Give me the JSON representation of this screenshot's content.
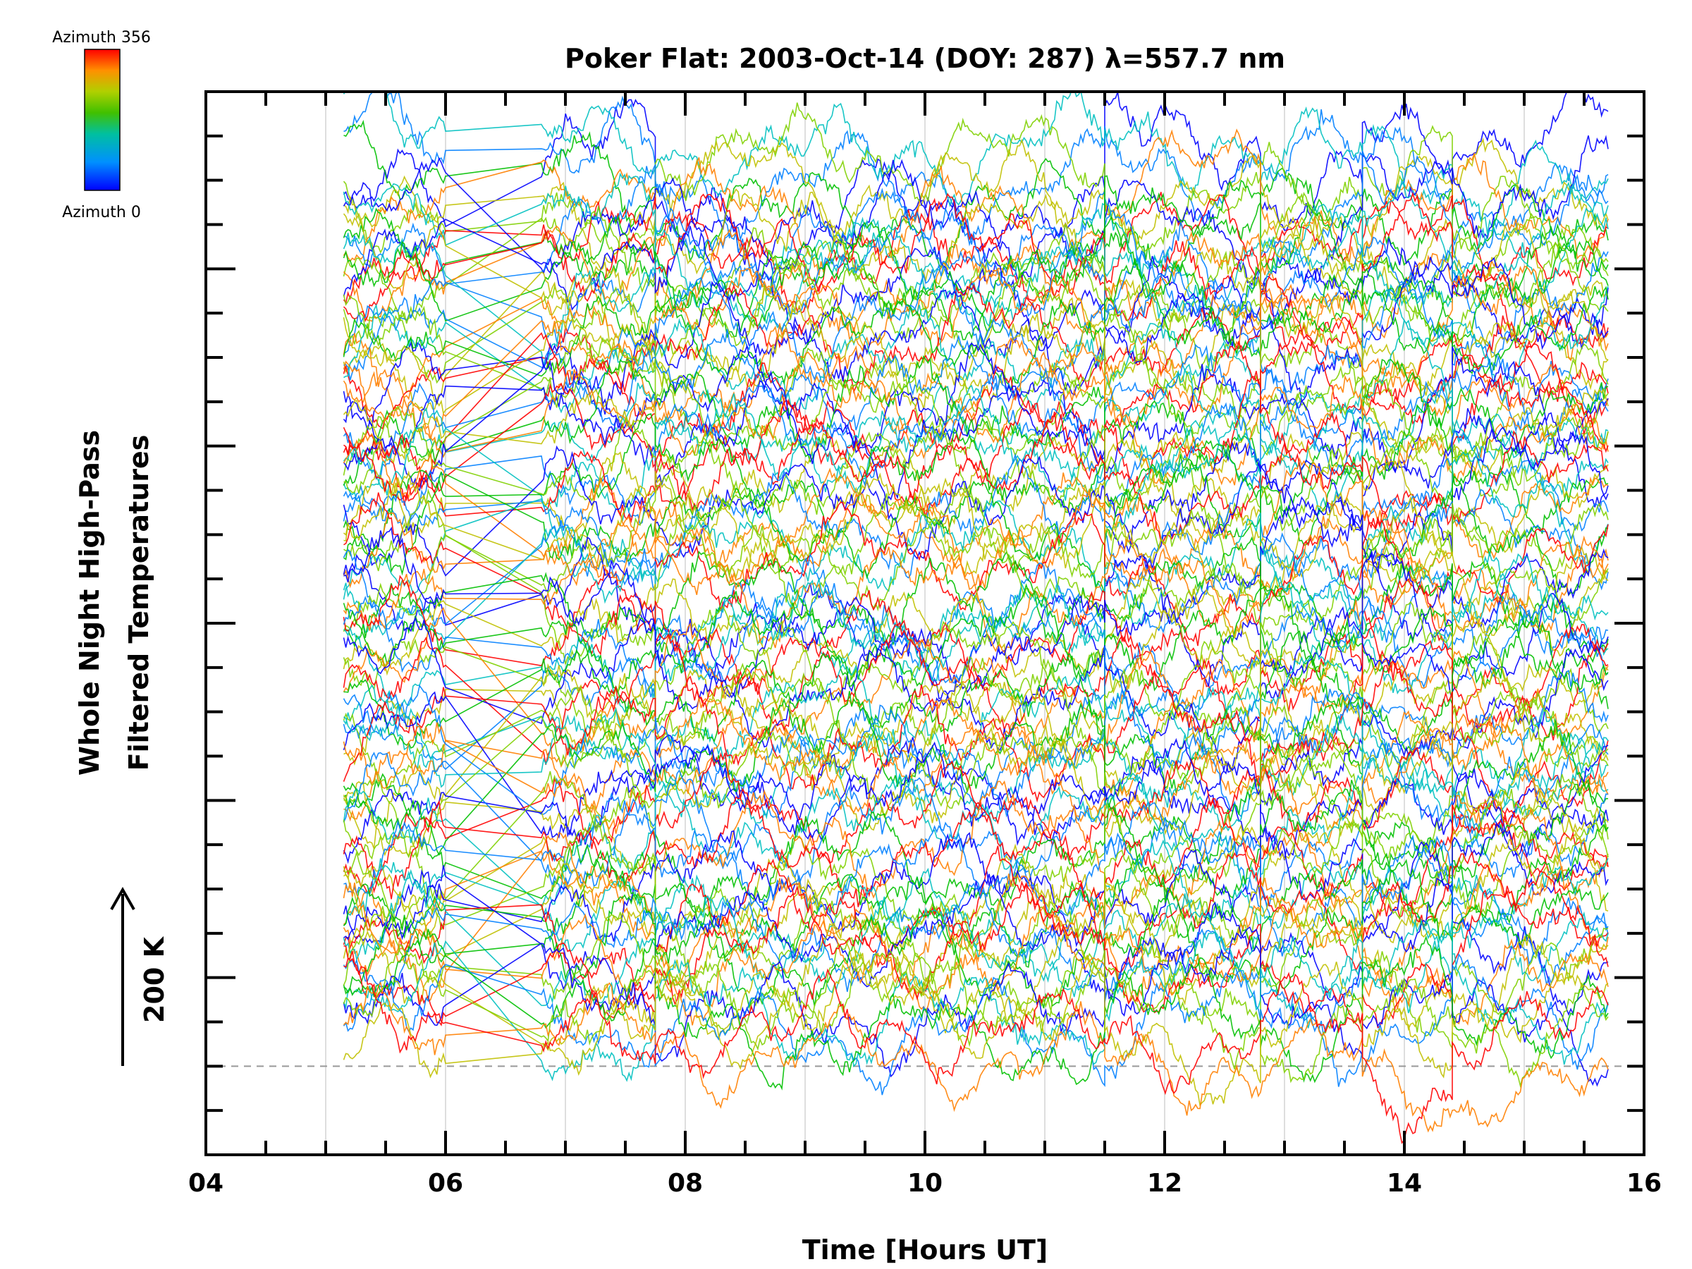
{
  "chart_data": {
    "type": "line",
    "title": "Poker Flat: 2003-Oct-14 (DOY: 287) λ=557.7 nm",
    "xlabel": "Time [Hours UT]",
    "ylabel_line1": "Whole Night High-Pass",
    "ylabel_line2": "Filtered Temperatures",
    "xlim": [
      4,
      16
    ],
    "x_ticks": [
      "04",
      "06",
      "08",
      "10",
      "12",
      "14",
      "16"
    ],
    "x_tick_values": [
      4,
      6,
      8,
      10,
      12,
      14,
      16
    ],
    "x_minor_step": 0.5,
    "vertical_gridlines_hours": [
      5,
      6,
      7,
      8,
      9,
      10,
      11,
      12,
      13,
      14,
      15
    ],
    "y_tick_count": 25,
    "y_major_every": 4,
    "y_ticks_labeled": false,
    "baseline_dashed": true,
    "colorbar": {
      "label_top": "Azimuth 356",
      "label_bottom": "Azimuth 0",
      "min": 0,
      "max": 356,
      "position": "top-left"
    },
    "scale_indicator": "200 K",
    "series_count": 120,
    "data_segments_hours": [
      [
        5.15,
        6.0
      ],
      [
        6.8,
        7.75
      ],
      [
        7.75,
        11.5
      ],
      [
        11.5,
        12.8
      ],
      [
        12.8,
        13.65
      ],
      [
        13.65,
        14.4
      ],
      [
        14.4,
        15.7
      ]
    ],
    "gaps_hours": [
      [
        6.0,
        6.8
      ],
      [
        12.8,
        13.65
      ],
      [
        13.65,
        14.4
      ]
    ],
    "line_colors_by_azimuth": [
      "#0000ff",
      "#0080ff",
      "#00c0c0",
      "#00c000",
      "#80d000",
      "#c0c000",
      "#ff8000",
      "#ff0000"
    ],
    "legend_position": "top-left"
  }
}
